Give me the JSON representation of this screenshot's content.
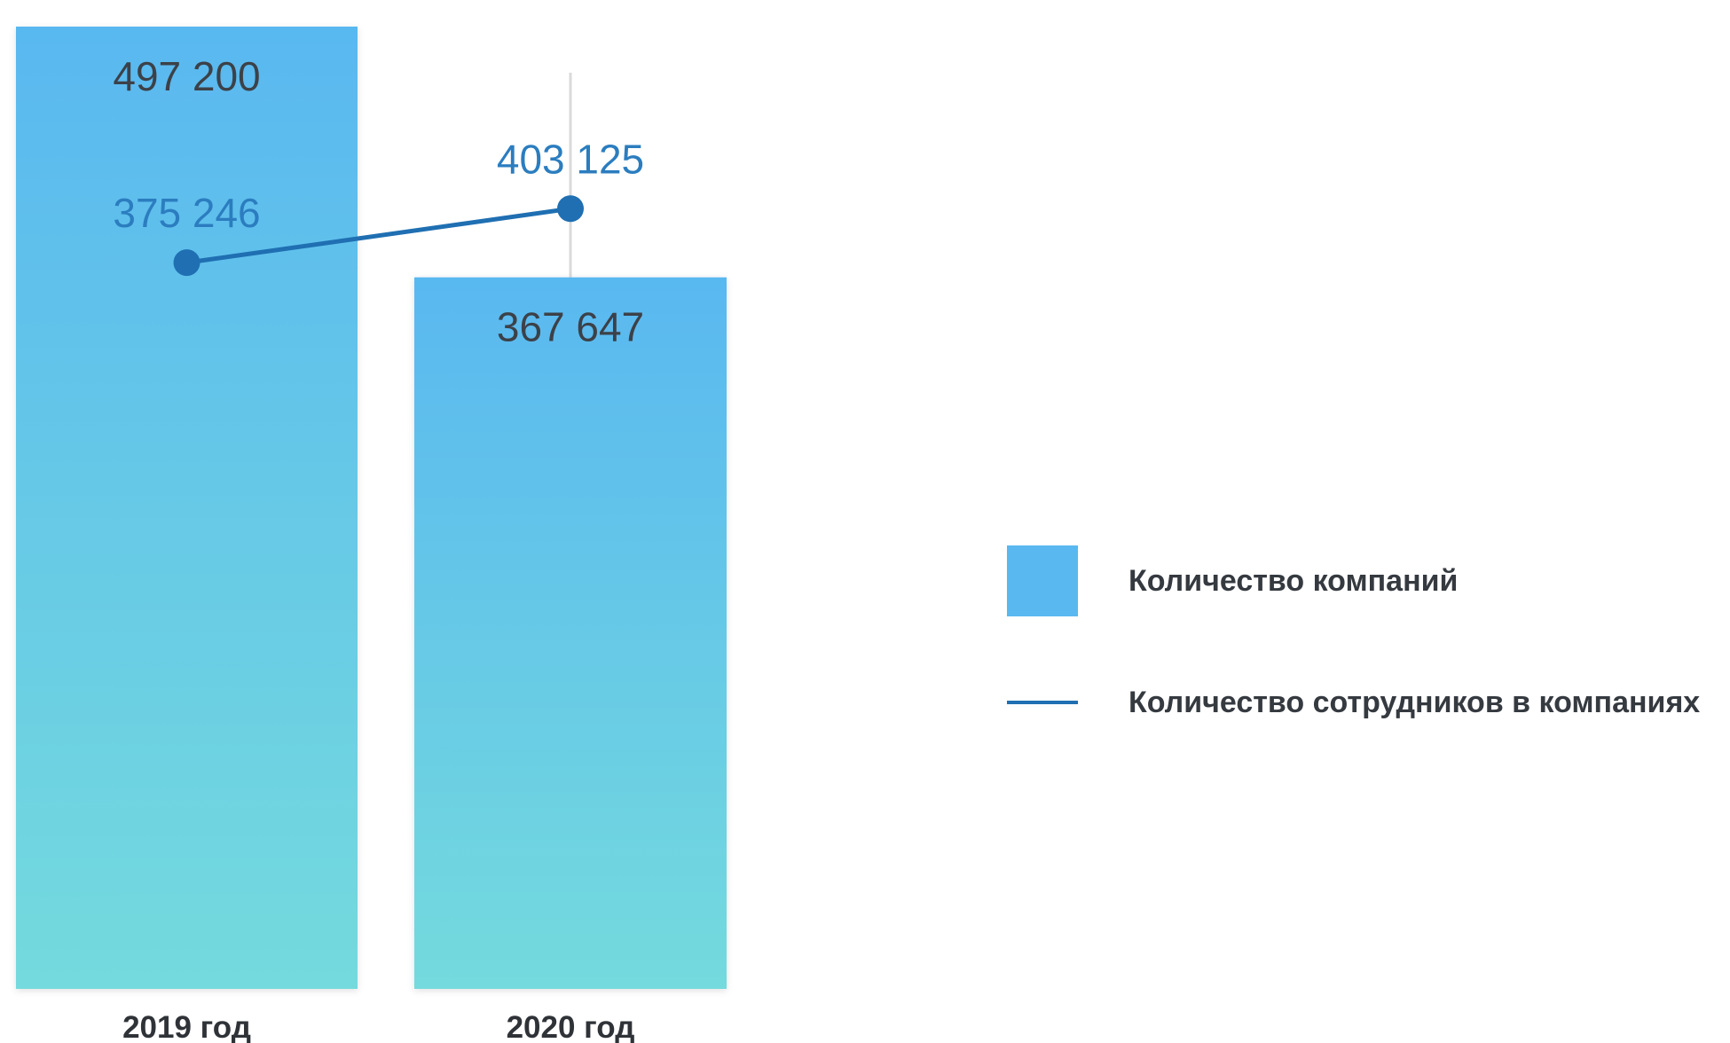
{
  "colors": {
    "bar_top": "#59b8f0",
    "bar_bottom": "#74dadd",
    "line": "#1f6fb2",
    "line_label": "#2b7dbf",
    "guide": "#d9d9d9"
  },
  "chart_data": {
    "type": "bar",
    "categories": [
      "2019 год",
      "2020 год"
    ],
    "series": [
      {
        "name": "Количество компаний",
        "type": "bar",
        "values": [
          497200,
          367647
        ],
        "labels": [
          "497 200",
          "367 647"
        ]
      },
      {
        "name": "Количество сотрудников в компаниях",
        "type": "line",
        "values": [
          375246,
          403125
        ],
        "labels": [
          "375 246",
          "403 125"
        ]
      }
    ],
    "title": "",
    "xlabel": "",
    "ylabel": "",
    "legend_position": "right",
    "grid": false
  }
}
